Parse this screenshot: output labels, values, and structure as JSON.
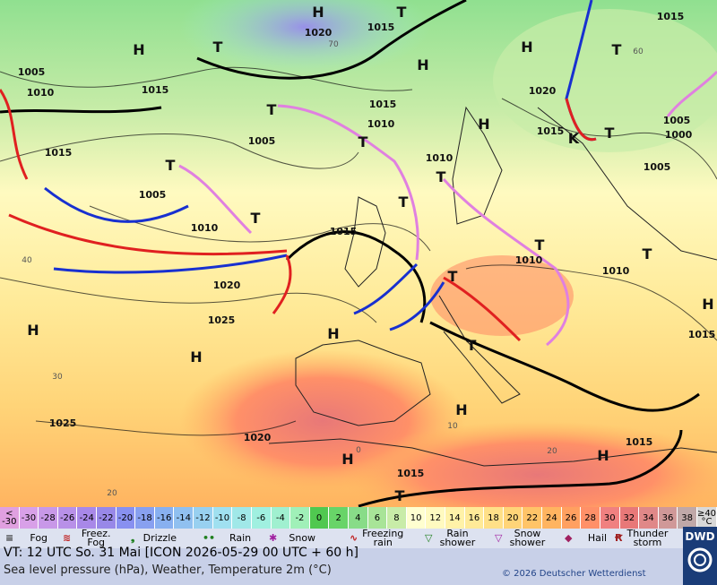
{
  "map": {
    "pressure_centers": [
      "H",
      "T",
      "H",
      "H",
      "T",
      "H",
      "T",
      "T",
      "T",
      "H",
      "T",
      "T",
      "T",
      "T",
      "T",
      "T",
      "T",
      "T",
      "T",
      "H",
      "H",
      "H",
      "H",
      "H",
      "H",
      "T",
      "K",
      "H"
    ],
    "isobar_labels": [
      "1020",
      "1015",
      "1015",
      "1015",
      "1010",
      "1005",
      "1015",
      "1010",
      "1005",
      "1015",
      "1005",
      "1010",
      "1020",
      "1015",
      "1000",
      "1005",
      "1010",
      "1015",
      "1010",
      "1010",
      "1020",
      "1025",
      "1025",
      "1020",
      "1015",
      "1015",
      "1015",
      "1005"
    ],
    "isotherm_labels": [
      "40",
      "30",
      "20",
      "20",
      "10",
      "0",
      "60",
      "70"
    ]
  },
  "temperature_scale": [
    {
      "label": "< -30",
      "color": "#e0a0e0"
    },
    {
      "label": "-30",
      "color": "#d8a0e8"
    },
    {
      "label": "-28",
      "color": "#c898e8"
    },
    {
      "label": "-26",
      "color": "#b890e8"
    },
    {
      "label": "-24",
      "color": "#a888e8"
    },
    {
      "label": "-22",
      "color": "#9888e8"
    },
    {
      "label": "-20",
      "color": "#8890f0"
    },
    {
      "label": "-18",
      "color": "#88a0f0"
    },
    {
      "label": "-16",
      "color": "#88b0f0"
    },
    {
      "label": "-14",
      "color": "#90c0f0"
    },
    {
      "label": "-12",
      "color": "#98d0f0"
    },
    {
      "label": "-10",
      "color": "#a0e0f0"
    },
    {
      "label": "-8",
      "color": "#a0e8e8"
    },
    {
      "label": "-6",
      "color": "#a0f0e0"
    },
    {
      "label": "-4",
      "color": "#a0f0d0"
    },
    {
      "label": "-2",
      "color": "#a0f0b8"
    },
    {
      "label": "0",
      "color": "#50c850"
    },
    {
      "label": "2",
      "color": "#68d468"
    },
    {
      "label": "4",
      "color": "#88dc88"
    },
    {
      "label": "6",
      "color": "#a8e498"
    },
    {
      "label": "8",
      "color": "#c8eca8"
    },
    {
      "label": "10",
      "color": "#ffffd0"
    },
    {
      "label": "12",
      "color": "#fffac0"
    },
    {
      "label": "14",
      "color": "#fff2a8"
    },
    {
      "label": "16",
      "color": "#ffea98"
    },
    {
      "label": "18",
      "color": "#ffe088"
    },
    {
      "label": "20",
      "color": "#ffd478"
    },
    {
      "label": "22",
      "color": "#ffc468"
    },
    {
      "label": "24",
      "color": "#ffb460"
    },
    {
      "label": "26",
      "color": "#ffa060"
    },
    {
      "label": "28",
      "color": "#ff9068"
    },
    {
      "label": "30",
      "color": "#f08080"
    },
    {
      "label": "32",
      "color": "#e87878"
    },
    {
      "label": "34",
      "color": "#e08888"
    },
    {
      "label": "36",
      "color": "#d09898"
    },
    {
      "label": "38",
      "color": "#c0a8a8"
    },
    {
      "label": "≥40 °C",
      "color": "#d8d8d8"
    }
  ],
  "weather_legend": [
    "Fog",
    "Freez. Fog",
    "Drizzle",
    "Rain",
    "Snow",
    "Freezing rain",
    "Rain shower",
    "Snow shower",
    "Hail",
    "Thunder storm"
  ],
  "footer": {
    "valid_time": "VT: 12 UTC So.  31 Mai [ICON 2026-05-29  00 UTC + 60 h]",
    "description": "Sea level pressure (hPa), Weather, Temperature 2m (°C)",
    "copyright": "© 2026 Deutscher Wetterdienst",
    "logo": "DWD"
  }
}
